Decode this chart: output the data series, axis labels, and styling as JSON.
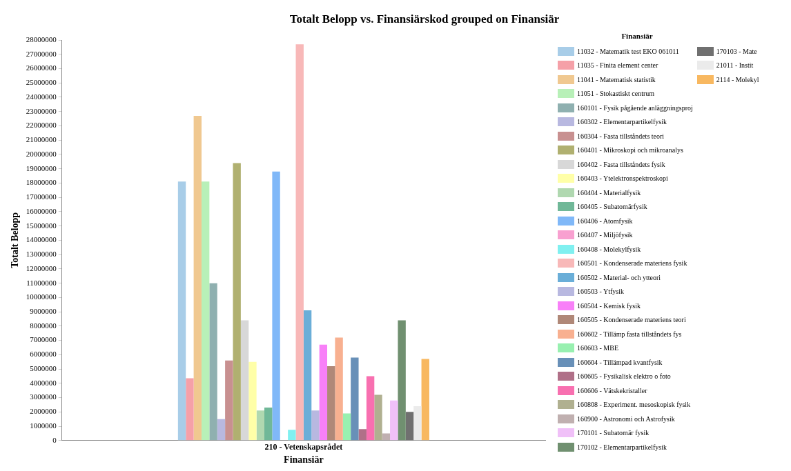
{
  "chart_data": {
    "type": "bar",
    "title": "Totalt Belopp vs. Finansiärskod grouped on Finansiär",
    "xlabel": "Finansiär",
    "ylabel": "Totalt Belopp",
    "legend_title": "Finansiär",
    "legend": "right",
    "grid": false,
    "categories": [
      "210 - Vetenskapsrådet"
    ],
    "ylim": [
      0,
      28000000
    ],
    "yticks": [
      0,
      1000000,
      2000000,
      3000000,
      4000000,
      5000000,
      6000000,
      7000000,
      8000000,
      9000000,
      10000000,
      11000000,
      12000000,
      13000000,
      14000000,
      15000000,
      16000000,
      17000000,
      18000000,
      19000000,
      20000000,
      21000000,
      22000000,
      23000000,
      24000000,
      25000000,
      26000000,
      27000000,
      28000000
    ],
    "series": [
      {
        "name": "11032 - Matematik test EKO 061011",
        "color": "#a8cde8",
        "values": [
          18100000
        ]
      },
      {
        "name": "11035 - Finita element center",
        "color": "#f5a0a8",
        "values": [
          4350000
        ]
      },
      {
        "name": "11041 - Matematisk statistik",
        "color": "#f0c890",
        "values": [
          22700000
        ]
      },
      {
        "name": "11051 - Stokastiskt centrum",
        "color": "#b8f0b8",
        "values": [
          18100000
        ]
      },
      {
        "name": "160101 - Fysik pågående anläggningsproj",
        "color": "#8fb0b0",
        "values": [
          11000000
        ]
      },
      {
        "name": "160302 - Elementarpartikelfysik",
        "color": "#b8b8e0",
        "values": [
          1500000
        ]
      },
      {
        "name": "160304 - Fasta tillståndets teori",
        "color": "#c89090",
        "values": [
          5600000
        ]
      },
      {
        "name": "160401 - Mikroskopi och mikroanalys",
        "color": "#b0b070",
        "values": [
          19400000
        ]
      },
      {
        "name": "160402 - Fasta tillståndets fysik",
        "color": "#d8d8d8",
        "values": [
          8400000
        ]
      },
      {
        "name": "160403 - Ytelektronspektroskopi",
        "color": "#ffffa8",
        "values": [
          5500000
        ]
      },
      {
        "name": "160404 - Materialfysik",
        "color": "#b0d8b0",
        "values": [
          2100000
        ]
      },
      {
        "name": "160405 - Subatomärfysik",
        "color": "#70b898",
        "values": [
          2300000
        ]
      },
      {
        "name": "160406 - Atomfysik",
        "color": "#80b8f8",
        "values": [
          18800000
        ]
      },
      {
        "name": "160407 - Miljöfysik",
        "color": "#f8a0d0",
        "values": [
          null
        ]
      },
      {
        "name": "160408 - Molekylfysik",
        "color": "#80f0f0",
        "values": [
          750000
        ]
      },
      {
        "name": "160501 - Kondenserade materiens fysik",
        "color": "#f8b8b8",
        "values": [
          27700000
        ]
      },
      {
        "name": "160502 - Material- och ytteori",
        "color": "#6aaed8",
        "values": [
          9100000
        ]
      },
      {
        "name": "160503 - Ytfysik",
        "color": "#b8b8e0",
        "values": [
          2100000
        ]
      },
      {
        "name": "160504 - Kemisk fysik",
        "color": "#f880f8",
        "values": [
          6700000
        ]
      },
      {
        "name": "160505 - Kondenserade materiens teori",
        "color": "#b08878",
        "values": [
          5200000
        ]
      },
      {
        "name": "160602 - Tillämp fasta tillståndets fys",
        "color": "#f8b090",
        "values": [
          7200000
        ]
      },
      {
        "name": "160603 - MBE",
        "color": "#98f0b0",
        "values": [
          1900000
        ]
      },
      {
        "name": "160604 - Tillämpad kvantfysik",
        "color": "#6890b8",
        "values": [
          5800000
        ]
      },
      {
        "name": "160605 - Fysikalisk elektro o foto",
        "color": "#b07088",
        "values": [
          800000
        ]
      },
      {
        "name": "160606 - Vätskekristaller",
        "color": "#f870b0",
        "values": [
          4500000
        ]
      },
      {
        "name": "160808 - Experiment. mesoskopisk fysik",
        "color": "#b0b090",
        "values": [
          3200000
        ]
      },
      {
        "name": "160900 - Astronomi och Astrofysik",
        "color": "#c0b0b0",
        "values": [
          500000
        ]
      },
      {
        "name": "170101 - Subatomär fysik",
        "color": "#f0c0f8",
        "values": [
          2800000
        ]
      },
      {
        "name": "170102 - Elementarpartikelfysik",
        "color": "#709070",
        "values": [
          8400000
        ]
      },
      {
        "name": "170103 - Mate",
        "color": "#707070",
        "values": [
          2000000
        ]
      },
      {
        "name": "21011 - Instit",
        "color": "#ebebeb",
        "values": [
          2400000
        ]
      },
      {
        "name": "2114 - Molekyl",
        "color": "#f8b860",
        "values": [
          5700000
        ]
      }
    ]
  }
}
